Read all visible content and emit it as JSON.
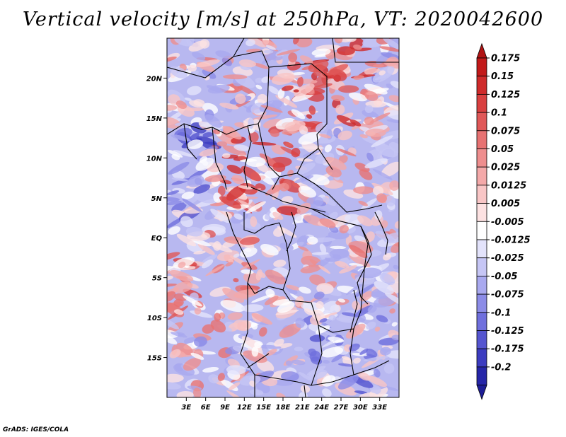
{
  "title": "Vertical velocity [m/s] at 250hPa, VT: 2020042600",
  "footer": "GrADS: IGES/COLA",
  "map": {
    "lon_range": [
      0,
      36
    ],
    "lat_range": [
      -20,
      25
    ],
    "lat_ticks": [
      {
        "value": 20,
        "label": "20N"
      },
      {
        "value": 15,
        "label": "15N"
      },
      {
        "value": 10,
        "label": "10N"
      },
      {
        "value": 5,
        "label": "5N"
      },
      {
        "value": 0,
        "label": "EQ"
      },
      {
        "value": -5,
        "label": "5S"
      },
      {
        "value": -10,
        "label": "10S"
      },
      {
        "value": -15,
        "label": "15S"
      }
    ],
    "lon_ticks": [
      {
        "value": 3,
        "label": "3E"
      },
      {
        "value": 6,
        "label": "6E"
      },
      {
        "value": 9,
        "label": "9E"
      },
      {
        "value": 12,
        "label": "12E"
      },
      {
        "value": 15,
        "label": "15E"
      },
      {
        "value": 18,
        "label": "18E"
      },
      {
        "value": 21,
        "label": "21E"
      },
      {
        "value": 24,
        "label": "24E"
      },
      {
        "value": 27,
        "label": "27E"
      },
      {
        "value": 30,
        "label": "30E"
      },
      {
        "value": 33,
        "label": "33E"
      }
    ]
  },
  "colorbar": {
    "levels": [
      {
        "label": "0.175",
        "color": "#c21a1a"
      },
      {
        "label": "0.15",
        "color": "#cf2b2b"
      },
      {
        "label": "0.125",
        "color": "#d94040"
      },
      {
        "label": "0.1",
        "color": "#e05858"
      },
      {
        "label": "0.075",
        "color": "#e77272"
      },
      {
        "label": "0.05",
        "color": "#ee8e8e"
      },
      {
        "label": "0.025",
        "color": "#f4a9a9"
      },
      {
        "label": "0.0125",
        "color": "#f9c6c6"
      },
      {
        "label": "0.005",
        "color": "#fde2e2"
      },
      {
        "label": "-0.005",
        "color": "#ffffff"
      },
      {
        "label": "-0.0125",
        "color": "#e3e3fb"
      },
      {
        "label": "-0.025",
        "color": "#c6c6f5"
      },
      {
        "label": "-0.05",
        "color": "#a9a9ef"
      },
      {
        "label": "-0.075",
        "color": "#8c8ce7"
      },
      {
        "label": "-0.1",
        "color": "#6f6fdd"
      },
      {
        "label": "-0.125",
        "color": "#5555d0"
      },
      {
        "label": "-0.175",
        "color": "#3c3cc0"
      },
      {
        "label": "-0.2",
        "color": "#2626a8"
      }
    ],
    "top_color": "#b01414",
    "bottom_color": "#1e1e96"
  }
}
